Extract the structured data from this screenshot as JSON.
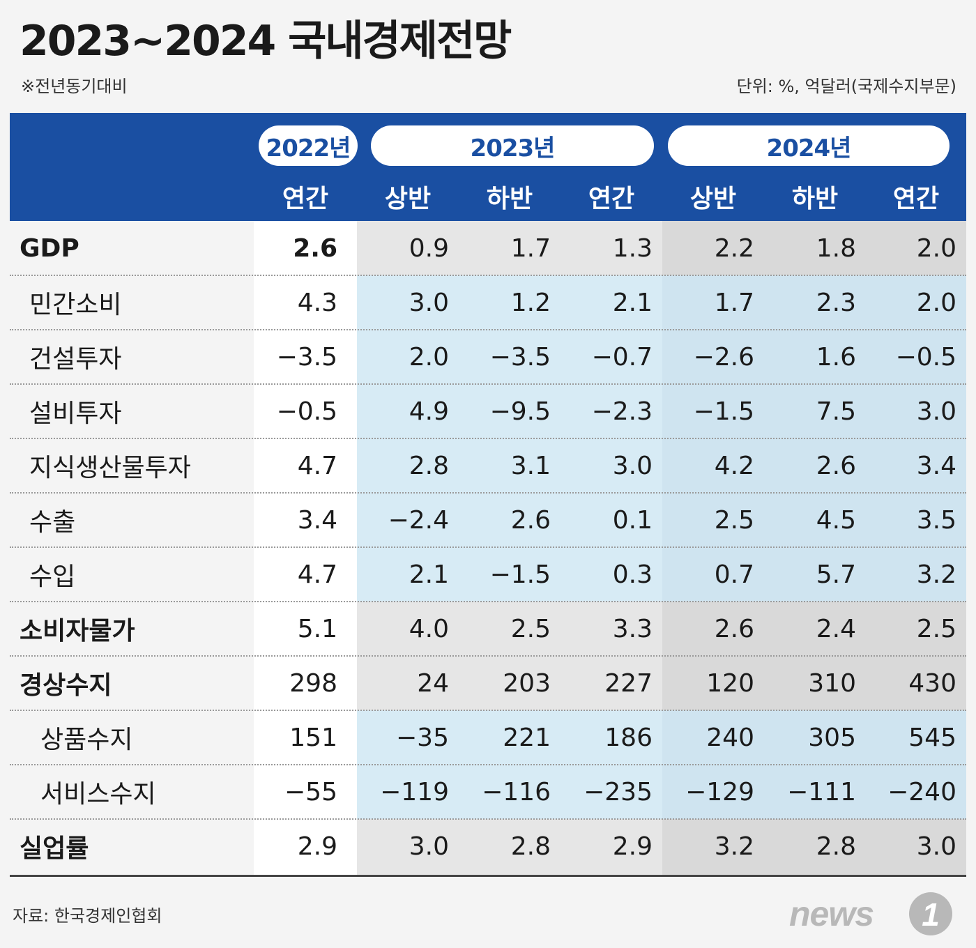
{
  "title": "2023~2024 국내경제전망",
  "subnote": "※전년동기대비",
  "unit": "단위: %, 억달러(국제수지부문)",
  "source": "자료: 한국경제인협회",
  "logo_text": "news",
  "logo_mark": "1",
  "colors": {
    "header": "#1a4fa2",
    "col2022": "#ffffff",
    "col2023": "#e6e6e6",
    "col2024": "#d9d9d9",
    "sub2023": "#d7ebf5",
    "sub2024": "#cfe4f0"
  },
  "header": {
    "years": [
      "2022년",
      "2023년",
      "2024년"
    ],
    "periods": [
      "연간",
      "상반",
      "하반",
      "연간",
      "상반",
      "하반",
      "연간"
    ]
  },
  "chart_data": {
    "type": "table",
    "title": "2023~2024 국내경제전망",
    "columns": [
      "2022년 연간",
      "2023년 상반",
      "2023년 하반",
      "2023년 연간",
      "2024년 상반",
      "2024년 하반",
      "2024년 연간"
    ],
    "rows": [
      {
        "label": "GDP",
        "bold": true,
        "sub": 0,
        "values": [
          "2.6",
          "0.9",
          "1.7",
          "1.3",
          "2.2",
          "1.8",
          "2.0"
        ]
      },
      {
        "label": "민간소비",
        "bold": false,
        "sub": 1,
        "values": [
          "4.3",
          "3.0",
          "1.2",
          "2.1",
          "1.7",
          "2.3",
          "2.0"
        ]
      },
      {
        "label": "건설투자",
        "bold": false,
        "sub": 1,
        "values": [
          "−3.5",
          "2.0",
          "−3.5",
          "−0.7",
          "−2.6",
          "1.6",
          "−0.5"
        ]
      },
      {
        "label": "설비투자",
        "bold": false,
        "sub": 1,
        "values": [
          "−0.5",
          "4.9",
          "−9.5",
          "−2.3",
          "−1.5",
          "7.5",
          "3.0"
        ]
      },
      {
        "label": "지식생산물투자",
        "bold": false,
        "sub": 1,
        "values": [
          "4.7",
          "2.8",
          "3.1",
          "3.0",
          "4.2",
          "2.6",
          "3.4"
        ]
      },
      {
        "label": "수출",
        "bold": false,
        "sub": 1,
        "values": [
          "3.4",
          "−2.4",
          "2.6",
          "0.1",
          "2.5",
          "4.5",
          "3.5"
        ]
      },
      {
        "label": "수입",
        "bold": false,
        "sub": 1,
        "values": [
          "4.7",
          "2.1",
          "−1.5",
          "0.3",
          "0.7",
          "5.7",
          "3.2"
        ]
      },
      {
        "label": "소비자물가",
        "bold": true,
        "sub": 0,
        "values": [
          "5.1",
          "4.0",
          "2.5",
          "3.3",
          "2.6",
          "2.4",
          "2.5"
        ]
      },
      {
        "label": "경상수지",
        "bold": true,
        "sub": 0,
        "values": [
          "298",
          "24",
          "203",
          "227",
          "120",
          "310",
          "430"
        ]
      },
      {
        "label": "상품수지",
        "bold": false,
        "sub": 2,
        "values": [
          "151",
          "−35",
          "221",
          "186",
          "240",
          "305",
          "545"
        ]
      },
      {
        "label": "서비스수지",
        "bold": false,
        "sub": 2,
        "values": [
          "−55",
          "−119",
          "−116",
          "−235",
          "−129",
          "−111",
          "−240"
        ]
      },
      {
        "label": "실업률",
        "bold": true,
        "sub": 0,
        "values": [
          "2.9",
          "3.0",
          "2.8",
          "2.9",
          "3.2",
          "2.8",
          "3.0"
        ]
      }
    ]
  }
}
